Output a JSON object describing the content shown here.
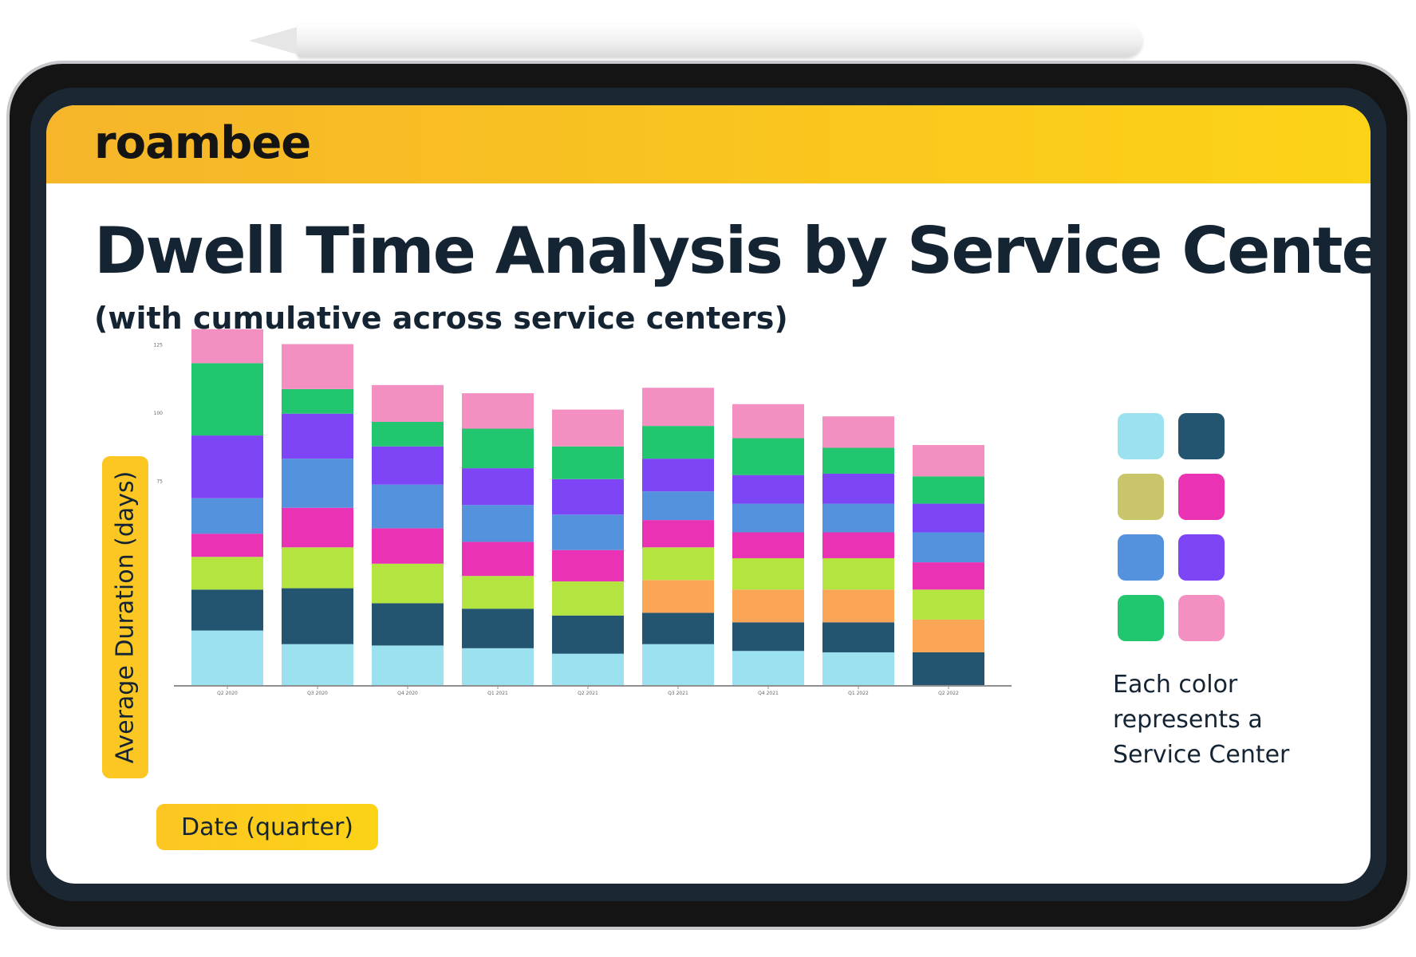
{
  "header": {
    "brand": "roambee"
  },
  "slide": {
    "title": "Dwell Time Analysis by Service Center",
    "subtitle": "(with cumulative across service centers)"
  },
  "legend": {
    "note_lines": [
      "Each color",
      "represents a",
      "Service Center"
    ],
    "swatches": [
      "#9be1f0",
      "#235470",
      "#c8c56a",
      "#e933b4",
      "#5592dd",
      "#7e45f6",
      "#22c66f",
      "#f48fc2"
    ]
  },
  "chart_data": {
    "type": "bar",
    "stacked": true,
    "xlabel": "Date (quarter)",
    "ylabel": "Average Duration (days)",
    "yticks": [
      75,
      100,
      125
    ],
    "ylim": [
      0,
      130
    ],
    "categories": [
      "Q2 2020",
      "Q3 2020",
      "Q4 2020",
      "Q1 2021",
      "Q2 2021",
      "Q3 2021",
      "Q4 2021",
      "Q1 2022",
      "Q2 2022"
    ],
    "series": [
      {
        "color": "#9be1f0",
        "values": [
          20,
          15,
          14.5,
          13.5,
          11.5,
          15,
          12.5,
          12,
          0
        ]
      },
      {
        "color": "#235470",
        "values": [
          15,
          20.5,
          15.5,
          14.5,
          14,
          11.5,
          10.5,
          11,
          12
        ]
      },
      {
        "color": "#fba656",
        "values": [
          0,
          0,
          0,
          0,
          0,
          12,
          12,
          12,
          12
        ]
      },
      {
        "color": "#b3e440",
        "values": [
          12,
          15,
          14.5,
          12,
          12.5,
          12,
          11.5,
          11.5,
          11
        ]
      },
      {
        "color": "#e933b4",
        "values": [
          8.5,
          14.5,
          13,
          12.5,
          11.5,
          10,
          9.5,
          9.5,
          10
        ]
      },
      {
        "color": "#5592dd",
        "values": [
          13,
          18,
          16,
          13.5,
          13,
          10.5,
          10.5,
          10.5,
          11
        ]
      },
      {
        "color": "#7e45f6",
        "values": [
          23,
          16.5,
          14,
          13.5,
          13,
          12,
          10.5,
          11,
          10.5
        ]
      },
      {
        "color": "#22c66f",
        "values": [
          26.5,
          9,
          9,
          14.5,
          12,
          12,
          13.5,
          9.5,
          10
        ]
      },
      {
        "color": "#f48fc2",
        "values": [
          12.5,
          16.5,
          13.5,
          13,
          13.5,
          14,
          12.5,
          11.5,
          11.5
        ]
      }
    ]
  }
}
